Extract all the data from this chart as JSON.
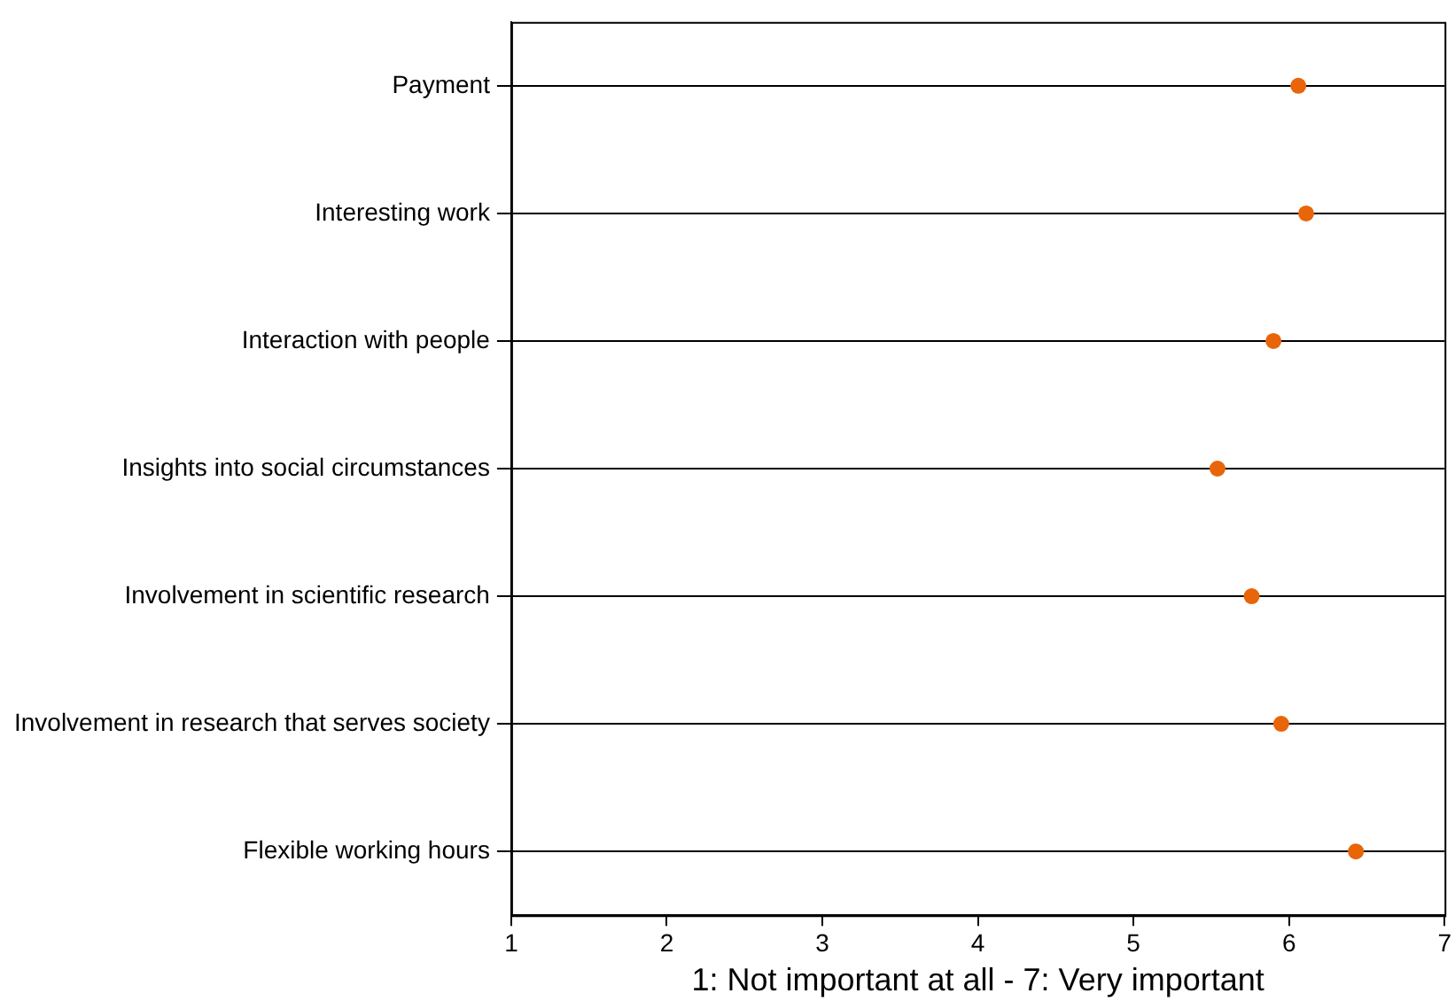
{
  "chart_data": {
    "type": "scatter",
    "orientation": "horizontal",
    "xlabel": "1: Not important at all - 7: Very important",
    "categories": [
      "Payment",
      "Interesting work",
      "Interaction with people",
      "Insights into social circumstances",
      "Involvement in scientific research",
      "Involvement in research that serves society",
      "Flexible working hours"
    ],
    "series": [
      {
        "color": "#e8650a",
        "values": [
          6.06,
          6.11,
          5.9,
          5.54,
          5.76,
          5.95,
          6.43
        ]
      }
    ],
    "xlim": [
      1,
      7
    ],
    "xticks": [
      1,
      2,
      3,
      4,
      5,
      6,
      7
    ],
    "grid": "y",
    "marker": "circle",
    "legend": false
  }
}
